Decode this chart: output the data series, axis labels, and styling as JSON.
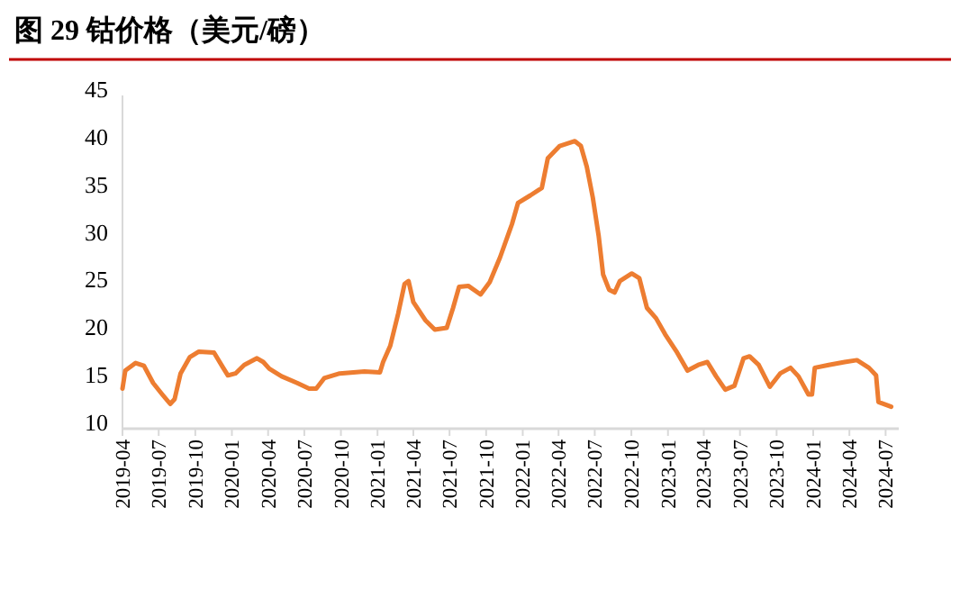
{
  "chart_data": {
    "type": "line",
    "title": "图 29 钴价格（美元/磅）",
    "x": [
      "2019-04-01",
      "2019-04-08",
      "2019-05-04",
      "2019-05-25",
      "2019-06-17",
      "2019-07-10",
      "2019-07-30",
      "2019-08-10",
      "2019-08-25",
      "2019-09-17",
      "2019-10-10",
      "2019-11-17",
      "2019-12-10",
      "2019-12-22",
      "2020-01-10",
      "2020-02-01",
      "2020-03-04",
      "2020-03-20",
      "2020-04-04",
      "2020-05-05",
      "2020-06-13",
      "2020-07-13",
      "2020-07-31",
      "2020-08-20",
      "2020-09-28",
      "2020-11-29",
      "2021-01-07",
      "2021-01-15",
      "2021-02-02",
      "2021-02-22",
      "2021-03-10",
      "2021-03-20",
      "2021-04-01",
      "2021-05-01",
      "2021-05-25",
      "2021-06-24",
      "2021-07-10",
      "2021-07-25",
      "2021-08-17",
      "2021-09-17",
      "2021-10-10",
      "2021-11-05",
      "2021-12-05",
      "2021-12-20",
      "2022-01-20",
      "2022-02-18",
      "2022-03-05",
      "2022-04-04",
      "2022-05-12",
      "2022-05-27",
      "2022-06-11",
      "2022-06-26",
      "2022-07-11",
      "2022-07-22",
      "2022-08-06",
      "2022-08-20",
      "2022-09-02",
      "2022-10-02",
      "2022-10-21",
      "2022-11-09",
      "2022-12-02",
      "2022-12-25",
      "2023-01-24",
      "2023-02-19",
      "2023-03-18",
      "2023-04-10",
      "2023-05-02",
      "2023-05-25",
      "2023-06-17",
      "2023-07-10",
      "2023-07-25",
      "2023-08-17",
      "2023-09-14",
      "2023-10-10",
      "2023-11-05",
      "2023-11-25",
      "2023-12-20",
      "2023-12-29",
      "2024-01-05",
      "2024-02-09",
      "2024-03-20",
      "2024-04-20",
      "2024-05-20",
      "2024-06-07",
      "2024-06-13",
      "2024-07-15"
    ],
    "series": [
      {
        "color": "#ed7d31",
        "values": [
          14.2,
          16.1,
          16.9,
          16.6,
          14.8,
          13.6,
          12.6,
          13.1,
          15.8,
          17.5,
          18.1,
          18.0,
          16.4,
          15.6,
          15.8,
          16.7,
          17.4,
          17.0,
          16.3,
          15.5,
          14.8,
          14.2,
          14.2,
          15.3,
          15.8,
          16.0,
          15.9,
          17.0,
          18.7,
          22.1,
          25.2,
          25.5,
          23.3,
          21.4,
          20.4,
          20.6,
          22.7,
          24.9,
          25.0,
          24.1,
          25.4,
          28.0,
          31.5,
          33.7,
          34.5,
          35.3,
          38.4,
          39.7,
          40.2,
          39.7,
          37.5,
          34.3,
          30.2,
          26.2,
          24.6,
          24.3,
          25.5,
          26.3,
          25.8,
          22.7,
          21.6,
          19.9,
          18.0,
          16.1,
          16.7,
          17.0,
          15.5,
          14.1,
          14.5,
          17.4,
          17.6,
          16.7,
          14.4,
          15.8,
          16.4,
          15.5,
          13.6,
          13.6,
          16.4,
          16.7,
          17.0,
          17.2,
          16.4,
          15.6,
          12.8,
          12.3
        ]
      }
    ],
    "xlim": [
      "2019-04-01",
      "2024-07-25"
    ],
    "xticks": [
      "2019-04",
      "2019-07",
      "2019-10",
      "2020-01",
      "2020-04",
      "2020-07",
      "2020-10",
      "2021-01",
      "2021-04",
      "2021-07",
      "2021-10",
      "2022-01",
      "2022-04",
      "2022-07",
      "2022-10",
      "2023-01",
      "2023-04",
      "2023-07",
      "2023-10",
      "2024-01",
      "2024-04",
      "2024-07"
    ],
    "ylim": [
      10,
      45
    ],
    "yticks": [
      10,
      15,
      20,
      25,
      30,
      35,
      40,
      45
    ],
    "grid": false,
    "marker": "none",
    "line_style": "solid"
  }
}
